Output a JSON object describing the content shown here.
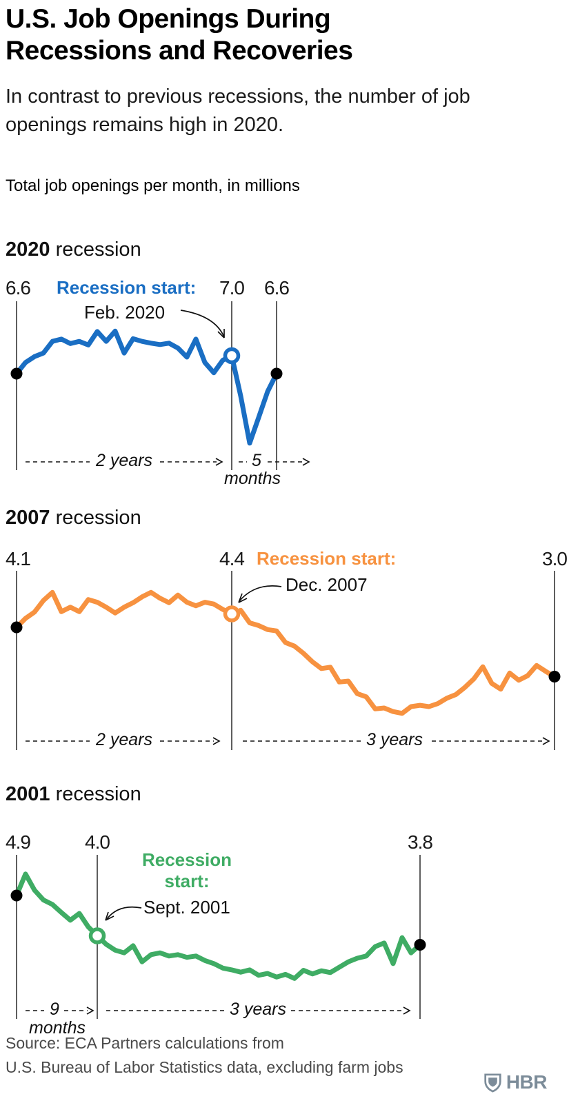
{
  "page": {
    "title": "U.S. Job Openings During Recessions and Recoveries",
    "subtitle": "In contrast to previous recessions, the number of job openings remains high in 2020.",
    "units_label": "Total job openings per month, in millions",
    "source_line1": "Source: ECA Partners calculations from",
    "source_line2": "U.S. Bureau of Labor Statistics data, excluding farm jobs",
    "logo_text": "HBR"
  },
  "colors": {
    "blue": "#1A6EC3",
    "orange": "#F79240",
    "green": "#3FAC64",
    "axis": "#1a1a1a",
    "annotation": "#111111",
    "muted_text": "#4a4a4a",
    "logo": "#7C8C99"
  },
  "chart_data": [
    {
      "type": "line",
      "title_year": "2020",
      "title_word": "recession",
      "color": "#1A6EC3",
      "x_unit": "months (monthly data, 2 years before recession start through 5 months after)",
      "ylabel": "Total job openings per month, in millions",
      "recession_start_index": 24,
      "labels": {
        "start_value": "6.6",
        "recession_value": "7.0",
        "end_value": "6.6",
        "recession_start": "Recession start:",
        "recession_date": "Feb. 2020",
        "pre_span": "2 years",
        "post_span": "5",
        "post_span_unit": "months"
      },
      "series": [
        {
          "name": "Total job openings (millions)",
          "values": [
            6.6,
            6.85,
            6.98,
            7.06,
            7.32,
            7.37,
            7.27,
            7.32,
            7.24,
            7.54,
            7.32,
            7.55,
            7.06,
            7.38,
            7.32,
            7.28,
            7.25,
            7.28,
            7.17,
            6.97,
            7.37,
            6.85,
            6.62,
            6.9,
            7.0,
            6.1,
            5.05,
            5.62,
            6.2,
            6.6
          ]
        }
      ]
    },
    {
      "type": "line",
      "title_year": "2007",
      "title_word": "recession",
      "color": "#F79240",
      "x_unit": "months (monthly data, 2 years before recession start through 3 years after)",
      "ylabel": "Total job openings per month, in millions",
      "recession_start_index": 24,
      "labels": {
        "start_value": "4.1",
        "recession_value": "4.4",
        "end_value": "3.0",
        "recession_start": "Recession start:",
        "recession_date": "Dec. 2007",
        "pre_span": "2 years",
        "post_span": "3 years"
      },
      "series": [
        {
          "name": "Total job openings (millions)",
          "values": [
            4.1,
            4.3,
            4.44,
            4.7,
            4.88,
            4.45,
            4.55,
            4.45,
            4.72,
            4.66,
            4.55,
            4.42,
            4.55,
            4.65,
            4.78,
            4.88,
            4.75,
            4.65,
            4.82,
            4.66,
            4.58,
            4.66,
            4.62,
            4.5,
            4.4,
            4.48,
            4.2,
            4.14,
            4.05,
            4.02,
            3.76,
            3.68,
            3.52,
            3.33,
            3.18,
            3.21,
            2.88,
            2.9,
            2.62,
            2.55,
            2.28,
            2.3,
            2.22,
            2.18,
            2.33,
            2.36,
            2.33,
            2.4,
            2.52,
            2.6,
            2.76,
            2.95,
            3.22,
            2.85,
            2.72,
            3.08,
            2.92,
            3.02,
            3.25,
            3.12,
            3.0
          ]
        }
      ]
    },
    {
      "type": "line",
      "title_year": "2001",
      "title_word": "recession",
      "color": "#3FAC64",
      "x_unit": "months (monthly data, 9 months before recession start through 3 years after)",
      "ylabel": "Total job openings per month, in millions",
      "recession_start_index": 9,
      "labels": {
        "start_value": "4.9",
        "recession_value": "4.0",
        "end_value": "3.8",
        "recession_start": "Recession start:",
        "recession_date": "Sept. 2001",
        "pre_span": "9",
        "pre_span_unit": "months",
        "post_span": "3 years"
      },
      "series": [
        {
          "name": "Total job openings (millions)",
          "values": [
            4.9,
            5.38,
            5.02,
            4.8,
            4.7,
            4.52,
            4.35,
            4.5,
            4.2,
            4.0,
            3.81,
            3.68,
            3.62,
            3.78,
            3.42,
            3.58,
            3.62,
            3.55,
            3.58,
            3.52,
            3.55,
            3.45,
            3.38,
            3.28,
            3.24,
            3.19,
            3.24,
            3.12,
            3.16,
            3.08,
            3.14,
            3.05,
            3.23,
            3.15,
            3.22,
            3.18,
            3.3,
            3.42,
            3.5,
            3.55,
            3.76,
            3.84,
            3.38,
            3.96,
            3.62,
            3.8
          ]
        }
      ]
    }
  ]
}
